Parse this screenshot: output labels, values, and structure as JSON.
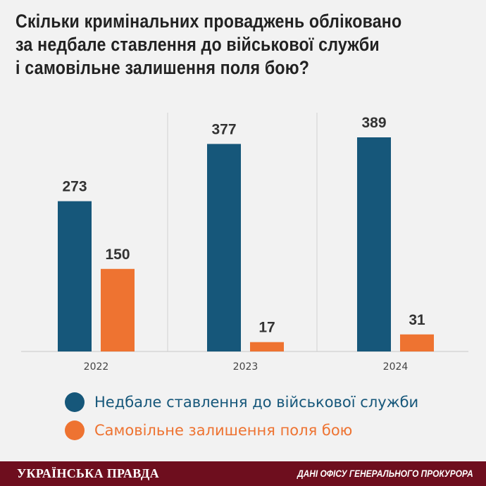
{
  "title_lines": [
    "Скільки кримінальних проваджень обліковано",
    "за недбале ставлення до військової служби",
    "і самовільне залишення поля бою?"
  ],
  "chart_data": {
    "type": "bar",
    "title": "Скільки кримінальних проваджень обліковано за недбале ставлення до військової служби і самовільне залишення поля бою?",
    "categories": [
      "2022",
      "2023",
      "2024"
    ],
    "series": [
      {
        "name": "Недбале ставлення до військової служби",
        "values": [
          273,
          377,
          389
        ],
        "color": "#16577a"
      },
      {
        "name": "Самовільне залишення поля бою",
        "values": [
          150,
          17,
          31
        ],
        "color": "#ee7331"
      }
    ],
    "grid": false,
    "legend": "bottom"
  },
  "footer": {
    "brand": "УКРАЇНСЬКА ПРАВДА",
    "source": "ДАНІ ОФІСУ ГЕНЕРАЛЬНОГО ПРОКУРОРА"
  }
}
